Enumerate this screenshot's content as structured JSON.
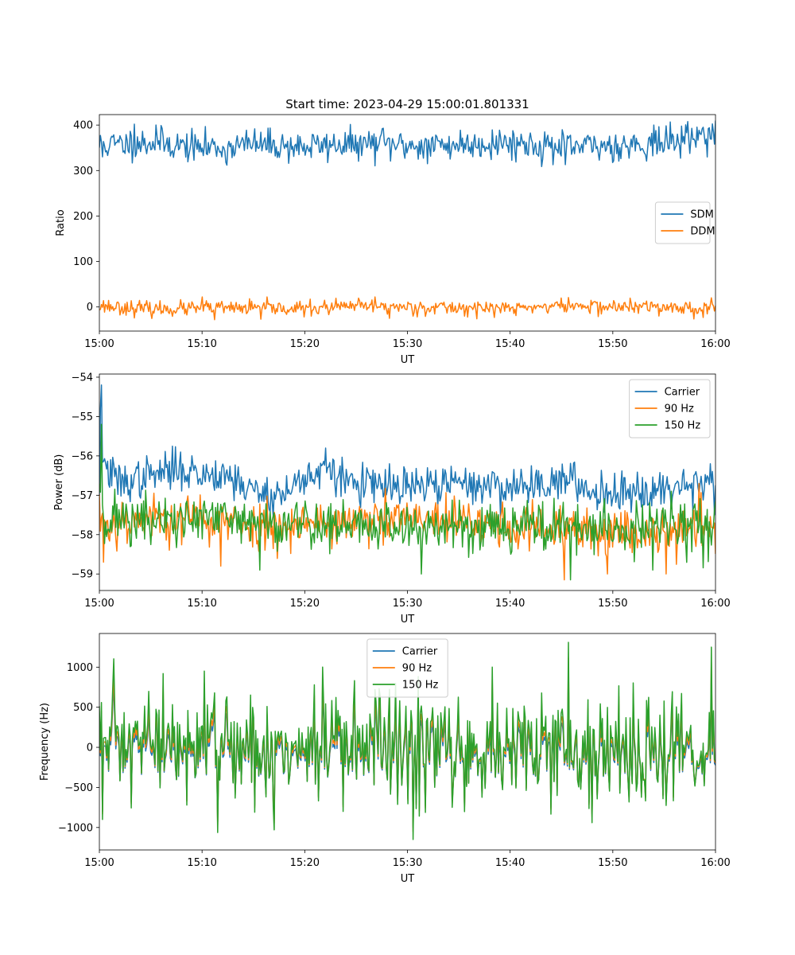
{
  "figure": {
    "title": "Start time: 2023-04-29 15:00:01.801331"
  },
  "colors": {
    "blue": "#1f77b4",
    "orange": "#ff7f0e",
    "green": "#2ca02c"
  },
  "chart_data": [
    {
      "type": "line",
      "xlabel": "UT",
      "ylabel": "Ratio",
      "x_range": [
        "15:00",
        "16:00"
      ],
      "xticks": [
        "15:00",
        "15:10",
        "15:20",
        "15:30",
        "15:40",
        "15:50",
        "16:00"
      ],
      "ylim": [
        -53,
        423
      ],
      "yticks": [
        0,
        100,
        200,
        300,
        400
      ],
      "ytick_labels": [
        "0",
        "100",
        "200",
        "300",
        "400"
      ],
      "legend_position": "center-right",
      "grid": false,
      "series": [
        {
          "name": "SDM",
          "color": "#1f77b4",
          "x_minutes": [
            0,
            5,
            10,
            15,
            20,
            25,
            30,
            35,
            40,
            45,
            50,
            55,
            60
          ],
          "values": [
            355,
            362,
            350,
            358,
            352,
            360,
            355,
            357,
            362,
            350,
            355,
            360,
            385
          ],
          "noise_std": 17,
          "noise_seed": 11,
          "points": 600,
          "spikes": [
            [
              0.3,
              330
            ],
            [
              1.1,
              370
            ],
            [
              3.4,
              402
            ],
            [
              5.5,
              400
            ],
            [
              12.3,
              318
            ],
            [
              25.0,
              338
            ],
            [
              27.5,
              392
            ],
            [
              32.0,
              315
            ],
            [
              45.4,
              313
            ],
            [
              54.0,
              400
            ],
            [
              59.3,
              392
            ]
          ]
        },
        {
          "name": "DDM",
          "color": "#ff7f0e",
          "x_minutes": [
            0,
            5,
            10,
            15,
            20,
            25,
            30,
            35,
            40,
            45,
            50,
            55,
            60
          ],
          "values": [
            3,
            -5,
            -3,
            -2,
            -4,
            2,
            0,
            -2,
            -3,
            3,
            0,
            0,
            -5
          ],
          "noise_std": 8,
          "noise_seed": 23,
          "points": 600,
          "spikes": [
            [
              10.0,
              22
            ],
            [
              11.2,
              -28
            ],
            [
              15.7,
              -27
            ],
            [
              26.8,
              22
            ],
            [
              28.2,
              -25
            ],
            [
              54.5,
              -20
            ],
            [
              59.6,
              20
            ]
          ]
        }
      ]
    },
    {
      "type": "line",
      "xlabel": "UT",
      "ylabel": "Power (dB)",
      "x_range": [
        "15:00",
        "16:00"
      ],
      "xticks": [
        "15:00",
        "15:10",
        "15:20",
        "15:30",
        "15:40",
        "15:50",
        "16:00"
      ],
      "ylim": [
        -59.42,
        -53.92
      ],
      "yticks": [
        -59,
        -58,
        -57,
        -56,
        -55,
        -54
      ],
      "ytick_labels": [
        "−59",
        "−58",
        "−57",
        "−56",
        "−55",
        "−54"
      ],
      "legend_position": "top-right",
      "grid": false,
      "series": [
        {
          "name": "Carrier",
          "color": "#1f77b4",
          "x_minutes": [
            0,
            0.5,
            2,
            5,
            8,
            10,
            12,
            15,
            18,
            20,
            22,
            25,
            28,
            30,
            35,
            40,
            45,
            48,
            50,
            55,
            60
          ],
          "values": [
            -55.0,
            -56.3,
            -56.7,
            -56.5,
            -56.3,
            -56.5,
            -56.4,
            -56.9,
            -57.0,
            -56.5,
            -56.4,
            -56.7,
            -56.8,
            -56.8,
            -56.7,
            -56.8,
            -56.6,
            -56.9,
            -56.9,
            -56.8,
            -56.6
          ],
          "noise_std": 0.25,
          "noise_seed": 37,
          "points": 600,
          "spikes": [
            [
              0.2,
              -54.2
            ],
            [
              0.05,
              -57.0
            ],
            [
              22.0,
              -55.8
            ],
            [
              55.0,
              -57.2
            ],
            [
              59.5,
              -56.2
            ],
            [
              59.9,
              -57.5
            ]
          ]
        },
        {
          "name": "90 Hz",
          "color": "#ff7f0e",
          "x_minutes": [
            0,
            0.5,
            3,
            6,
            10,
            15,
            20,
            25,
            30,
            35,
            40,
            45,
            50,
            55,
            60
          ],
          "values": [
            -57.4,
            -57.8,
            -57.6,
            -57.6,
            -57.6,
            -57.8,
            -57.7,
            -57.7,
            -57.6,
            -57.7,
            -57.8,
            -57.9,
            -57.9,
            -57.9,
            -57.7
          ],
          "noise_std": 0.3,
          "noise_seed": 53,
          "points": 600,
          "spikes": [
            [
              0.4,
              -58.7
            ],
            [
              11.8,
              -58.8
            ],
            [
              45.3,
              -59.15
            ],
            [
              49.5,
              -59.0
            ],
            [
              55.2,
              -59.0
            ],
            [
              58.4,
              -56.7
            ]
          ]
        },
        {
          "name": "150 Hz",
          "color": "#2ca02c",
          "x_minutes": [
            0,
            0.5,
            3,
            6,
            10,
            15,
            20,
            25,
            30,
            35,
            40,
            45,
            50,
            55,
            60
          ],
          "values": [
            -56.6,
            -57.6,
            -57.6,
            -57.7,
            -57.6,
            -57.7,
            -57.7,
            -57.8,
            -57.8,
            -57.8,
            -57.7,
            -57.8,
            -57.9,
            -57.8,
            -57.8
          ],
          "noise_std": 0.33,
          "noise_seed": 71,
          "points": 600,
          "spikes": [
            [
              0.25,
              -55.2
            ],
            [
              15.6,
              -58.9
            ],
            [
              31.4,
              -59.0
            ],
            [
              45.9,
              -59.15
            ],
            [
              53.9,
              -58.9
            ]
          ]
        }
      ]
    },
    {
      "type": "line",
      "xlabel": "UT",
      "ylabel": "Frequency (Hz)",
      "x_range": [
        "15:00",
        "16:00"
      ],
      "xticks": [
        "15:00",
        "15:10",
        "15:20",
        "15:30",
        "15:40",
        "15:50",
        "16:00"
      ],
      "ylim": [
        -1280,
        1420
      ],
      "yticks": [
        -1000,
        -500,
        0,
        500,
        1000
      ],
      "ytick_labels": [
        "−1000",
        "−500",
        "0",
        "500",
        "1000"
      ],
      "legend_position": "top-center",
      "grid": false,
      "base": {
        "noise_std": 360,
        "noise_seed": 97,
        "points": 600,
        "spikes": [
          [
            0.3,
            -900
          ],
          [
            6.2,
            920
          ],
          [
            10.2,
            950
          ],
          [
            17.0,
            -1030
          ],
          [
            21.7,
            1000
          ],
          [
            30.6,
            -1150
          ],
          [
            38.3,
            1000
          ],
          [
            45.7,
            1310
          ],
          [
            48.0,
            -940
          ],
          [
            59.6,
            1250
          ]
        ]
      },
      "series": [
        {
          "name": "Carrier",
          "color": "#1f77b4",
          "scale": 0.8,
          "offset": -80
        },
        {
          "name": "90 Hz",
          "color": "#ff7f0e",
          "scale": 0.88,
          "offset": -40
        },
        {
          "name": "150 Hz",
          "color": "#2ca02c",
          "scale": 1.0,
          "offset": 0
        }
      ]
    }
  ]
}
